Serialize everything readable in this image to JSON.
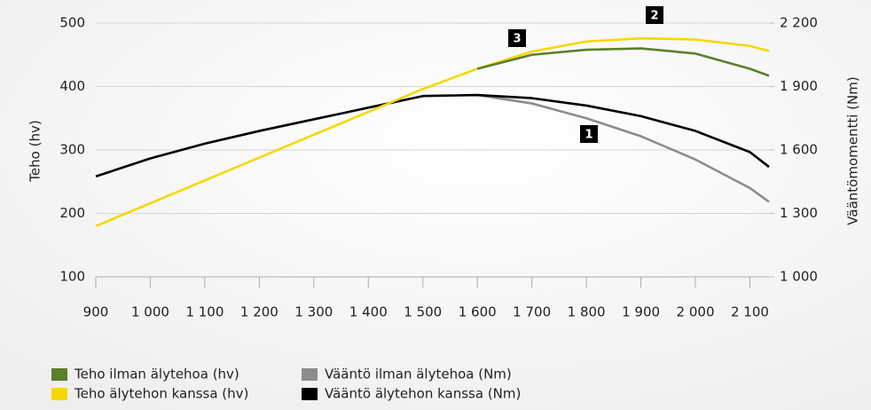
{
  "chart_data": {
    "type": "line",
    "y_label": "Teho (hv)",
    "y2_label": "Vääntömomentti (Nm)",
    "x": [
      900,
      1000,
      1100,
      1200,
      1300,
      1400,
      1500,
      1600,
      1700,
      1800,
      1900,
      2000,
      2100,
      2135
    ],
    "xlim": [
      900,
      2135
    ],
    "xticks": [
      900,
      {
        "value": 1000,
        "label": "1 000"
      },
      {
        "value": 1100,
        "label": "1 100"
      },
      {
        "value": 1200,
        "label": "1 200"
      },
      {
        "value": 1300,
        "label": "1 300"
      },
      {
        "value": 1400,
        "label": "1 400"
      },
      {
        "value": 1500,
        "label": "1 500"
      },
      {
        "value": 1600,
        "label": "1 600"
      },
      {
        "value": 1700,
        "label": "1 700"
      },
      {
        "value": 1800,
        "label": "1 800"
      },
      {
        "value": 1900,
        "label": "1 900"
      },
      {
        "value": 2000,
        "label": "2 000"
      },
      {
        "value": 2100,
        "label": "2 100"
      }
    ],
    "ylim": [
      100,
      500
    ],
    "yticks": [
      100,
      200,
      300,
      400,
      500
    ],
    "y2lim": [
      1000,
      2200
    ],
    "y2ticks": [
      {
        "value": 1000,
        "label": "1 000"
      },
      {
        "value": 1300,
        "label": "1 300"
      },
      {
        "value": 1600,
        "label": "1 600"
      },
      {
        "value": 1900,
        "label": "1 900"
      },
      {
        "value": 2200,
        "label": "2 200"
      }
    ],
    "grid": true,
    "series": [
      {
        "name": "Vääntö ilman älytehoa (Nm)",
        "color": "#8c8c8c",
        "axis": "y2",
        "values": [
          null,
          null,
          null,
          null,
          null,
          null,
          null,
          1860,
          1820,
          1750,
          1665,
          1555,
          1420,
          1355
        ]
      },
      {
        "name": "Vääntö älytehon kanssa (Nm)",
        "color": "#000000",
        "axis": "y2",
        "values": [
          1475,
          1560,
          1630,
          1690,
          1745,
          1800,
          1855,
          1860,
          1845,
          1810,
          1760,
          1690,
          1590,
          1520
        ]
      },
      {
        "name": "Teho älytehon kanssa (hv)",
        "color": "#f5d800",
        "values": [
          180,
          216,
          252,
          288,
          324,
          360,
          396,
          428,
          455,
          471,
          476,
          474,
          464,
          456
        ]
      },
      {
        "name": "Teho ilman älytehoa (hv)",
        "color": "#5b7f2b",
        "values": [
          null,
          null,
          null,
          null,
          null,
          null,
          null,
          428,
          450,
          458,
          460,
          452,
          428,
          417
        ]
      }
    ],
    "annotations": [
      "1",
      "2",
      "3"
    ]
  }
}
